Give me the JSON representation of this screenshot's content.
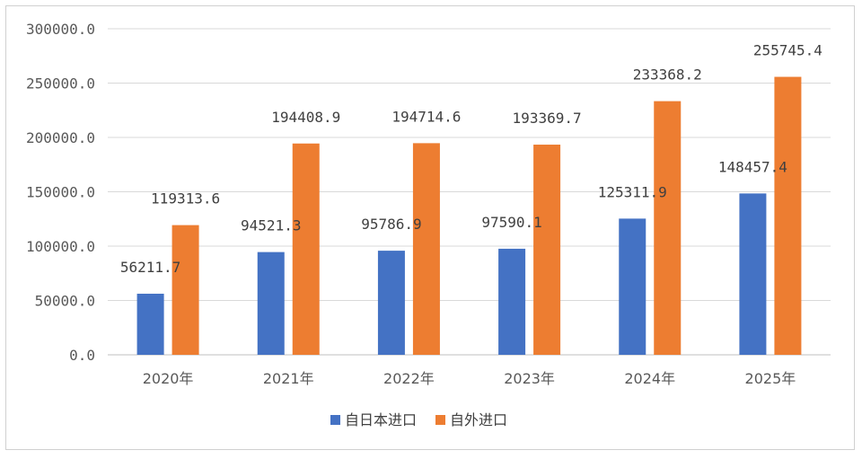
{
  "chart_data": {
    "type": "bar",
    "categories": [
      "2020年",
      "2021年",
      "2022年",
      "2023年",
      "2024年",
      "2025年"
    ],
    "series": [
      {
        "name": "自日本进口",
        "color": "#4472C4",
        "values": [
          56211.7,
          94521.3,
          95786.9,
          97590.1,
          125311.9,
          148457.4
        ]
      },
      {
        "name": "自外进口",
        "color": "#ED7D31",
        "values": [
          119313.6,
          194408.9,
          194714.6,
          193369.7,
          233368.2,
          255745.4
        ]
      }
    ],
    "y_ticks": [
      "0.0",
      "50000.0",
      "100000.0",
      "150000.0",
      "200000.0",
      "250000.0",
      "300000.0"
    ],
    "ylim": [
      0,
      300000
    ],
    "grid": true,
    "legend_position": "bottom"
  }
}
